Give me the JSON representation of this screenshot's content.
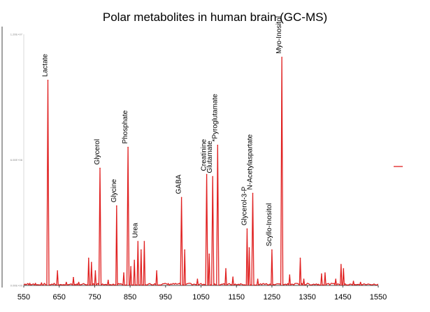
{
  "chart_data": {
    "type": "line",
    "title": "Polar metabolites in human brain (GC-MS)",
    "xlabel": "",
    "ylabel": "",
    "xlim": [
      550,
      1550
    ],
    "ylim": [
      0,
      12000000.0
    ],
    "x_ticks": [
      "550",
      "650",
      "750",
      "850",
      "950",
      "1050",
      "1150",
      "1250",
      "1350",
      "1450",
      "1550"
    ],
    "y_ticks": [
      "0.00E+00",
      "6.00E+06",
      "1.20E+07"
    ],
    "grid": false,
    "legend": {
      "position": "right",
      "entries": [
        {
          "label": "",
          "color": "#e02020"
        }
      ]
    },
    "series": [
      {
        "color": "#e02020",
        "peaks": [
          {
            "x": 567,
            "y": 100000
          },
          {
            "x": 583,
            "y": 100000
          },
          {
            "x": 600,
            "y": 120000
          },
          {
            "x": 618,
            "y": 9800000,
            "label": "Lactate"
          },
          {
            "x": 645,
            "y": 700000
          },
          {
            "x": 670,
            "y": 150000
          },
          {
            "x": 690,
            "y": 380000
          },
          {
            "x": 705,
            "y": 150000
          },
          {
            "x": 733,
            "y": 1300000
          },
          {
            "x": 741,
            "y": 1100000
          },
          {
            "x": 752,
            "y": 700000
          },
          {
            "x": 765,
            "y": 5600000,
            "label": "Glycerol"
          },
          {
            "x": 788,
            "y": 250000
          },
          {
            "x": 812,
            "y": 3800000,
            "label": "Glycine"
          },
          {
            "x": 832,
            "y": 600000
          },
          {
            "x": 844,
            "y": 6600000,
            "label": "Phosphate"
          },
          {
            "x": 852,
            "y": 900000
          },
          {
            "x": 862,
            "y": 1200000
          },
          {
            "x": 872,
            "y": 2100000,
            "label": "Urea"
          },
          {
            "x": 881,
            "y": 1700000
          },
          {
            "x": 890,
            "y": 2100000
          },
          {
            "x": 925,
            "y": 700000
          },
          {
            "x": 995,
            "y": 4200000,
            "label": "GABA"
          },
          {
            "x": 1004,
            "y": 1700000
          },
          {
            "x": 1040,
            "y": 300000
          },
          {
            "x": 1066,
            "y": 5300000,
            "label": "Creatinine"
          },
          {
            "x": 1073,
            "y": 1500000
          },
          {
            "x": 1083,
            "y": 5200000,
            "label": "Glutamate"
          },
          {
            "x": 1097,
            "y": 6700000,
            "label": "*Pyroglutamate"
          },
          {
            "x": 1120,
            "y": 800000
          },
          {
            "x": 1140,
            "y": 400000
          },
          {
            "x": 1180,
            "y": 2700000,
            "label": "Glycerol-3-P"
          },
          {
            "x": 1186,
            "y": 1800000
          },
          {
            "x": 1196,
            "y": 4400000,
            "label": "N-Acetylaspartate"
          },
          {
            "x": 1210,
            "y": 300000
          },
          {
            "x": 1250,
            "y": 1700000,
            "label": "Scyllo-Inositol"
          },
          {
            "x": 1278,
            "y": 10900000,
            "label": "Myo-Inositol"
          },
          {
            "x": 1300,
            "y": 500000
          },
          {
            "x": 1330,
            "y": 1300000
          },
          {
            "x": 1340,
            "y": 300000
          },
          {
            "x": 1390,
            "y": 550000
          },
          {
            "x": 1400,
            "y": 600000
          },
          {
            "x": 1430,
            "y": 300000
          },
          {
            "x": 1445,
            "y": 1000000
          },
          {
            "x": 1452,
            "y": 800000
          },
          {
            "x": 1480,
            "y": 200000
          },
          {
            "x": 1500,
            "y": 150000
          }
        ]
      }
    ]
  }
}
